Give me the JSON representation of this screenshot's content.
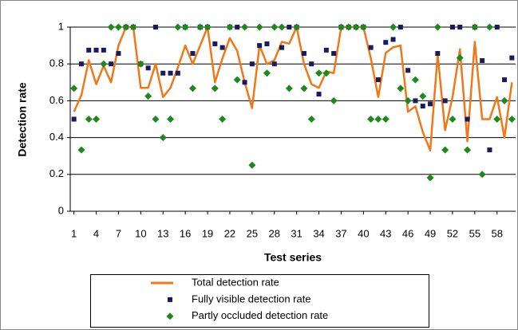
{
  "chart_data": {
    "type": "line-scatter",
    "x_label": "Test series",
    "y_label": "Detection rate",
    "x": [
      1,
      2,
      3,
      4,
      5,
      6,
      7,
      8,
      9,
      10,
      11,
      12,
      13,
      14,
      15,
      16,
      17,
      18,
      19,
      20,
      21,
      22,
      23,
      24,
      25,
      26,
      27,
      28,
      29,
      30,
      31,
      32,
      33,
      34,
      35,
      36,
      37,
      38,
      39,
      40,
      41,
      42,
      43,
      44,
      45,
      46,
      47,
      48,
      49,
      50,
      51,
      52,
      53,
      54,
      55,
      56,
      57,
      58,
      59,
      60
    ],
    "xlim": [
      0.5,
      60.5
    ],
    "xticks": [
      1,
      4,
      7,
      10,
      13,
      16,
      19,
      22,
      25,
      28,
      31,
      34,
      37,
      40,
      43,
      46,
      49,
      52,
      55,
      58
    ],
    "ylim": [
      0,
      1
    ],
    "yticks": [
      0,
      0.2,
      0.4,
      0.6,
      0.8,
      1
    ],
    "grid": true,
    "legend": "bottom",
    "series": [
      {
        "name": "Total detection rate",
        "color": "#f07818",
        "marker": "line",
        "values": [
          0.54,
          0.63,
          0.82,
          0.69,
          0.79,
          0.7,
          0.9,
          1,
          1,
          0.67,
          0.67,
          0.8,
          0.62,
          0.67,
          0.78,
          0.9,
          0.8,
          0.9,
          1,
          0.7,
          0.83,
          0.94,
          0.87,
          0.7,
          0.56,
          0.9,
          0.8,
          0.82,
          0.92,
          0.91,
          1,
          0.8,
          0.69,
          0.67,
          0.76,
          0.75,
          1,
          1,
          1,
          1,
          0.83,
          0.62,
          0.86,
          0.89,
          0.9,
          0.54,
          0.57,
          0.43,
          0.33,
          0.85,
          0.44,
          0.62,
          0.88,
          0.38,
          0.92,
          0.5,
          0.5,
          0.62,
          0.4,
          0.7
        ]
      },
      {
        "name": "Fully visible detection rate",
        "color": "#1a1a5e",
        "marker": "square",
        "values": [
          0.5,
          0.8,
          0.875,
          0.875,
          0.875,
          0.8,
          0.857,
          1,
          1,
          0.8,
          0.778,
          1,
          0.75,
          0.75,
          0.75,
          1,
          0.857,
          1,
          1,
          0.909,
          0.889,
          1,
          1,
          0.7,
          0.8,
          0.9,
          0.909,
          0.8,
          0.889,
          1,
          1,
          0.857,
          0.8,
          0.636,
          0.875,
          0.857,
          1,
          1,
          1,
          1,
          0.889,
          0.714,
          0.917,
          0.933,
          1,
          0.765,
          0.6,
          0.571,
          0.583,
          0.857,
          0.6,
          1,
          1,
          0.5,
          1,
          0.818,
          0.333,
          1,
          0.714,
          0.833
        ]
      },
      {
        "name": "Partly occluded detection rate",
        "color": "#1a8a1a",
        "marker": "diamond",
        "values": [
          0.667,
          0.333,
          0.5,
          0.5,
          0.8,
          1,
          1,
          1,
          1,
          0.8,
          0.625,
          0.5,
          0.4,
          0.5,
          1,
          1,
          0.667,
          1,
          1,
          0.667,
          0.5,
          1,
          0.714,
          1,
          0.25,
          1,
          0.75,
          1,
          1,
          0.667,
          1,
          0.667,
          0.5,
          0.75,
          0.75,
          0.6,
          1,
          1,
          1,
          1,
          0.5,
          0.5,
          0.5,
          1,
          0.667,
          0.6,
          0.714,
          0.625,
          0.182,
          1,
          0.333,
          0.5,
          0.833,
          0.333,
          1,
          0.2,
          1,
          0.5,
          0.6,
          0.5
        ]
      }
    ]
  }
}
